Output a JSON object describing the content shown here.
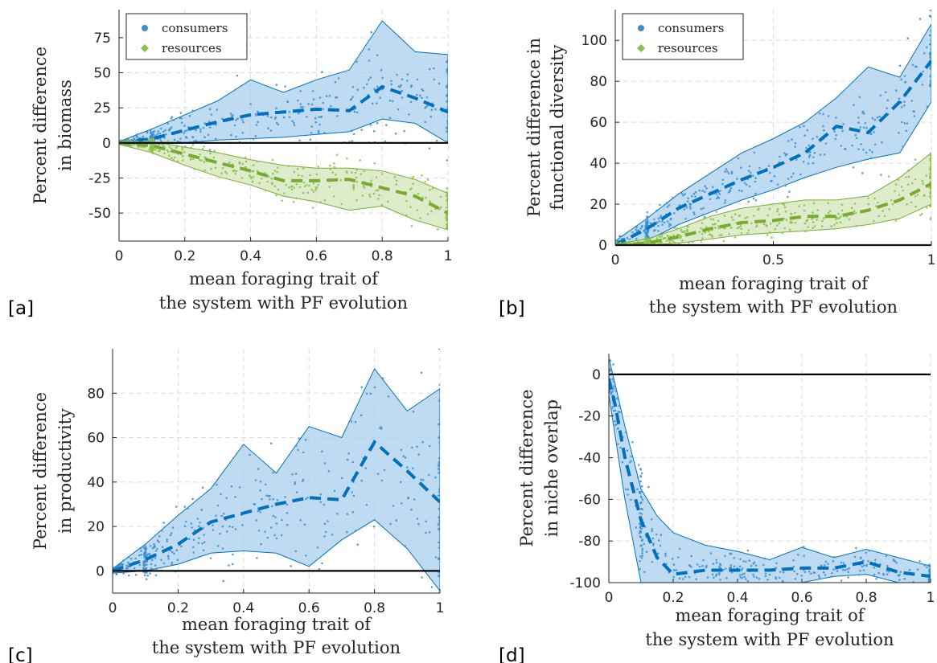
{
  "colors": {
    "consumers": "#0072bd",
    "consumers_band": "#a9cfec",
    "consumers_points": "#3b8fd1",
    "resources": "#77ac30",
    "resources_band": "#d3e6bb",
    "resources_points": "#8cc04a",
    "zero_line": "#000000",
    "grid": "#dcdcdc"
  },
  "chart_data": [
    {
      "panel": "[a]",
      "type": "scatter",
      "xlabel": [
        "mean foraging trait of",
        "the system with PF evolution"
      ],
      "ylabel": [
        "Percent difference",
        "in biomass"
      ],
      "xlim": [
        0,
        1
      ],
      "ylim": [
        -70,
        95
      ],
      "xticks": [
        0,
        0.2,
        0.4,
        0.6,
        0.8,
        1
      ],
      "xtick_labels": [
        "0",
        "0.2",
        "0.4",
        "0.6",
        "0.8",
        "1"
      ],
      "yticks": [
        -50,
        -25,
        0,
        25,
        50,
        75
      ],
      "ytick_labels": [
        "-50",
        "-25",
        "0",
        "25",
        "50",
        "75"
      ],
      "grid": true,
      "legend": {
        "position": "top-left",
        "entries": [
          "consumers",
          "resources"
        ]
      },
      "series": [
        {
          "name": "consumers",
          "x": [
            0,
            0.1,
            0.2,
            0.3,
            0.4,
            0.5,
            0.6,
            0.7,
            0.8,
            0.9,
            1
          ],
          "median": [
            0,
            3,
            9,
            15,
            20,
            22,
            24,
            23,
            40,
            32,
            22
          ],
          "upper": [
            1,
            10,
            20,
            30,
            45,
            36,
            45,
            52,
            87,
            65,
            63
          ],
          "lower": [
            -1,
            -1,
            0,
            2,
            3,
            4,
            6,
            8,
            17,
            14,
            0
          ]
        },
        {
          "name": "resources",
          "x": [
            0,
            0.1,
            0.2,
            0.3,
            0.4,
            0.5,
            0.6,
            0.7,
            0.8,
            0.9,
            1
          ],
          "median": [
            0,
            -2,
            -8,
            -14,
            -20,
            -27,
            -27,
            -26,
            -32,
            -38,
            -50
          ],
          "upper": [
            0,
            1,
            -3,
            -7,
            -12,
            -16,
            -18,
            -18,
            -20,
            -26,
            -36
          ],
          "lower": [
            -1,
            -7,
            -16,
            -24,
            -30,
            -38,
            -42,
            -48,
            -45,
            -55,
            -62
          ]
        }
      ]
    },
    {
      "panel": "[b]",
      "type": "scatter",
      "xlabel": [
        "mean foraging trait of",
        "the system with PF evolution"
      ],
      "ylabel": [
        "Percent difference in",
        "functional diversity"
      ],
      "xlim": [
        0,
        1
      ],
      "ylim": [
        0,
        115
      ],
      "xticks": [
        0,
        0.5,
        1
      ],
      "xtick_labels": [
        "0",
        "0.5",
        "1"
      ],
      "yticks": [
        0,
        20,
        40,
        60,
        80,
        100
      ],
      "ytick_labels": [
        "0",
        "20",
        "40",
        "60",
        "80",
        "100"
      ],
      "grid": true,
      "legend": {
        "position": "top-left",
        "entries": [
          "consumers",
          "resources"
        ]
      },
      "series": [
        {
          "name": "consumers",
          "x": [
            0,
            0.1,
            0.2,
            0.3,
            0.4,
            0.5,
            0.6,
            0.7,
            0.8,
            0.9,
            1
          ],
          "median": [
            0,
            8,
            18,
            25,
            32,
            38,
            45,
            58,
            55,
            70,
            90
          ],
          "upper": [
            2,
            13,
            25,
            35,
            45,
            52,
            60,
            72,
            87,
            82,
            108
          ],
          "lower": [
            -1,
            2,
            10,
            16,
            22,
            27,
            33,
            38,
            42,
            45,
            70
          ]
        },
        {
          "name": "resources",
          "x": [
            0,
            0.1,
            0.2,
            0.3,
            0.4,
            0.5,
            0.6,
            0.7,
            0.8,
            0.9,
            1
          ],
          "median": [
            0,
            1,
            4,
            8,
            11,
            12,
            14,
            14,
            17,
            22,
            30
          ],
          "upper": [
            0.5,
            3,
            8,
            14,
            18,
            20,
            22,
            22,
            24,
            33,
            45
          ],
          "lower": [
            -0.5,
            0,
            1,
            3,
            5,
            6,
            7,
            8,
            10,
            13,
            20
          ]
        }
      ]
    },
    {
      "panel": "[c]",
      "type": "scatter",
      "xlabel": [
        "mean foraging trait of",
        "the system with PF evolution"
      ],
      "ylabel": [
        "Percent difference",
        "in productivity"
      ],
      "xlim": [
        0,
        1
      ],
      "ylim": [
        -10,
        100
      ],
      "xticks": [
        0,
        0.2,
        0.4,
        0.6,
        0.8,
        1
      ],
      "xtick_labels": [
        "0",
        "0.2",
        "0.4",
        "0.6",
        "0.8",
        "1"
      ],
      "yticks": [
        0,
        20,
        40,
        60,
        80
      ],
      "ytick_labels": [
        "0",
        "20",
        "40",
        "60",
        "80"
      ],
      "grid": true,
      "series": [
        {
          "name": "consumers",
          "x": [
            0,
            0.1,
            0.2,
            0.3,
            0.4,
            0.5,
            0.6,
            0.7,
            0.8,
            0.9,
            1
          ],
          "median": [
            0,
            5,
            12,
            22,
            26,
            30,
            33,
            32,
            58,
            45,
            31
          ],
          "upper": [
            1,
            12,
            25,
            37,
            57,
            44,
            65,
            60,
            91,
            72,
            82
          ],
          "lower": [
            -1,
            0,
            3,
            8,
            9,
            8,
            2,
            14,
            23,
            10,
            -9
          ]
        }
      ]
    },
    {
      "panel": "[d]",
      "type": "scatter",
      "xlabel": [
        "mean foraging trait of",
        "the system with PF evolution"
      ],
      "ylabel": [
        "Percent difference",
        "in niche overlap"
      ],
      "xlim": [
        0,
        1
      ],
      "ylim": [
        -100,
        10
      ],
      "xticks": [
        0,
        0.2,
        0.4,
        0.6,
        0.8,
        1
      ],
      "xtick_labels": [
        "0",
        "0.2",
        "0.4",
        "0.6",
        "0.8",
        "1"
      ],
      "yticks": [
        -100,
        -80,
        -60,
        -40,
        -20,
        0
      ],
      "ytick_labels": [
        "-100",
        "-80",
        "-60",
        "-40",
        "-20",
        "0"
      ],
      "grid": true,
      "series": [
        {
          "name": "consumers",
          "x": [
            0,
            0.02,
            0.05,
            0.1,
            0.15,
            0.2,
            0.3,
            0.4,
            0.5,
            0.6,
            0.7,
            0.8,
            0.9,
            1
          ],
          "median": [
            -2,
            -15,
            -40,
            -70,
            -88,
            -96,
            -94,
            -94,
            -94,
            -93,
            -93,
            -90,
            -95,
            -97
          ],
          "upper": [
            8,
            -5,
            -25,
            -55,
            -68,
            -76,
            -82,
            -85,
            -89,
            -83,
            -88,
            -84,
            -88,
            -92
          ],
          "lower": [
            -10,
            -30,
            -60,
            -100,
            -100,
            -100,
            -100,
            -100,
            -100,
            -100,
            -97,
            -96,
            -100,
            -100
          ]
        }
      ]
    }
  ]
}
